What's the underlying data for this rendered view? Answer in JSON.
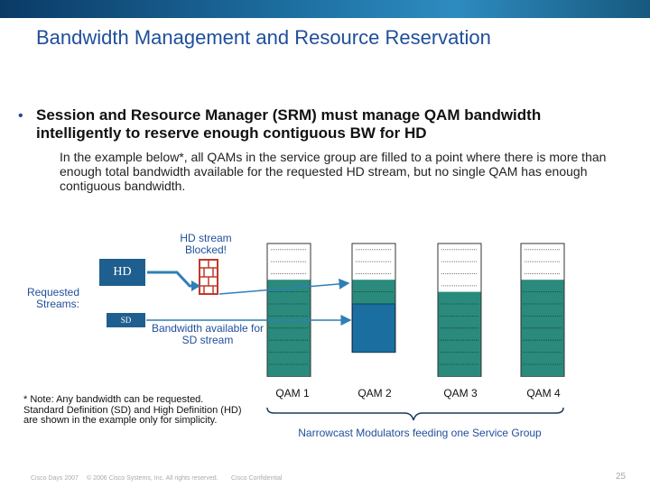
{
  "title": "Bandwidth Management and Resource Reservation",
  "bullet": {
    "marker": "•",
    "text": "Session and Resource Manager (SRM) must manage QAM bandwidth intelligently to reserve enough contiguous BW for HD",
    "sub_text": "In the example below*, all QAMs in the service group are filled to a point where there is more than enough total bandwidth available for the requested HD stream, but no single QAM has enough contiguous bandwidth."
  },
  "diagram": {
    "hd_blocked_label": "HD stream Blocked!",
    "requested_streams_label": "Requested Streams:",
    "hd_label": "HD",
    "sd_label": "SD",
    "sd_available_label": "Bandwidth available for SD stream",
    "group_label": "Narrowcast Modulators feeding one Service Group",
    "fill_color": "#2a8a7c",
    "highlight_color": "#1b6fa0",
    "qams": [
      {
        "label": "QAM 1",
        "free_slots": 3,
        "used_slots": 8
      },
      {
        "label": "QAM 2",
        "free_slots": 3,
        "used_slots": 2,
        "highlight_slots": 4
      },
      {
        "label": "QAM 3",
        "free_slots": 4,
        "used_slots": 7
      },
      {
        "label": "QAM 4",
        "free_slots": 3,
        "used_slots": 8
      }
    ]
  },
  "note": "* Note: Any bandwidth can be requested. Standard Definition (SD) and High Definition (HD) are shown in the example only for simplicity.",
  "footer": {
    "event": "Cisco Days 2007",
    "copyright": "© 2006 Cisco Systems, Inc. All rights reserved.",
    "confidential": "Cisco Confidential",
    "page_number": "25"
  }
}
